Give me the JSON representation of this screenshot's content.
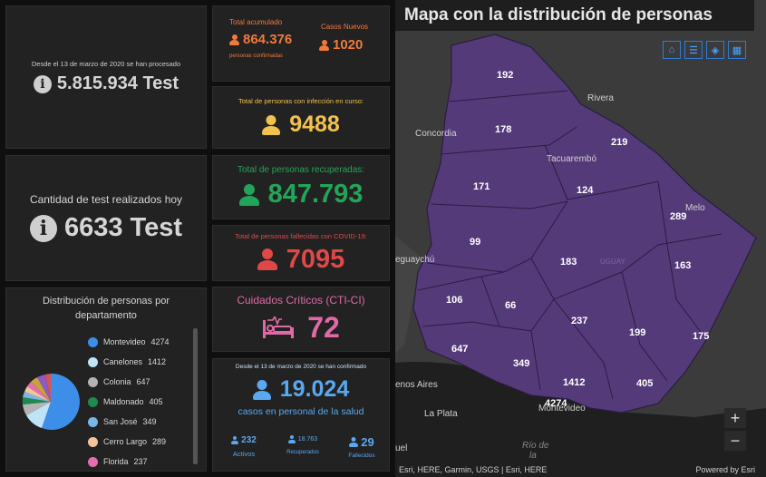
{
  "tests_total": {
    "since": "Desde el 13 de marzo de 2020 se han procesado",
    "value": "5.815.934 Test"
  },
  "tests_today": {
    "label": "Cantidad de test realizados hoy",
    "value": "6633 Test"
  },
  "total_acc": {
    "label": "Total acumulado",
    "value": "864.376",
    "sub": "personas confirmadas"
  },
  "new_cases": {
    "label": "Casos Nuevos",
    "value": "1020"
  },
  "in_course": {
    "label": "Total de personas con infección en curso:",
    "value": "9488"
  },
  "recovered": {
    "label": "Total de personas recuperadas:",
    "value": "847.793"
  },
  "deceased": {
    "label": "Total de personas fallecidas con COVID-19:",
    "value": "7095"
  },
  "critical": {
    "label": "Cuidados Críticos (CTI-CI)",
    "value": "72"
  },
  "health_staff": {
    "since": "Desde el 13 de marzo de 2020 se han confirmado",
    "value": "19.024",
    "sub": "casos en personal de la salud",
    "active": {
      "value": "232",
      "label": "Activos"
    },
    "recovered": {
      "value": "18.763",
      "label": "Recuperados"
    },
    "deceased": {
      "value": "29",
      "label": "Fallecidos"
    }
  },
  "distribution": {
    "title": "Distribución de personas por departamento",
    "items": [
      {
        "name": "Montevideo",
        "value": "4274",
        "color": "#3d8ee8"
      },
      {
        "name": "Canelones",
        "value": "1412",
        "color": "#bfe3f7"
      },
      {
        "name": "Colonia",
        "value": "647",
        "color": "#b3b3b3"
      },
      {
        "name": "Maldonado",
        "value": "405",
        "color": "#1f8a4f"
      },
      {
        "name": "San José",
        "value": "349",
        "color": "#7ab6e6"
      },
      {
        "name": "Cerro Largo",
        "value": "289",
        "color": "#f5c49a"
      },
      {
        "name": "Florida",
        "value": "237",
        "color": "#e46fb0"
      }
    ]
  },
  "map": {
    "title": "Mapa con la distribución de personas",
    "attribution": "Esri, HERE, Garmin, USGS | Esri, HERE",
    "powered": "Powered by Esri",
    "zoom_in": "+",
    "zoom_out": "−",
    "labels": {
      "artigas": "192",
      "salto": "178",
      "rivera": "219",
      "paysandu": "171",
      "tacuarembo": "124",
      "cerro_largo": "289",
      "rio_negro": "99",
      "durazno": "183",
      "treinta_tres": "163",
      "soriano": "106",
      "flores": "66",
      "florida": "237",
      "lavalleja": "199",
      "rocha": "175",
      "colonia": "647",
      "san_jose": "349",
      "canelones": "1412",
      "maldonado": "405",
      "montevideo": "4274"
    },
    "cities": {
      "concordia": "Concordia",
      "rivera": "Rivera",
      "tacuarembo": "Tacuarembó",
      "melo": "Melo",
      "gualeguaychu": "eguaychú",
      "buenos_aires": "enos Aires",
      "la_plata": "La Plata",
      "montevideo": "Montevideo",
      "rio": "Río de",
      "rio2": "la",
      "uguay": "UGUAY",
      "uel": "uel"
    }
  }
}
